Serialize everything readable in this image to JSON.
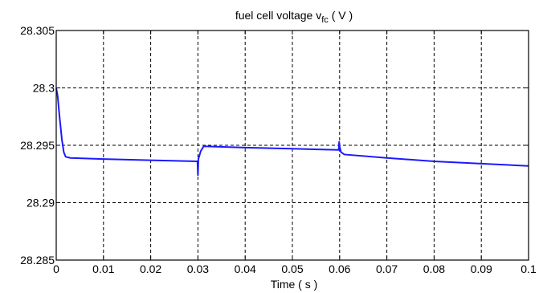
{
  "chart_data": {
    "type": "line",
    "title": {
      "prefix": "fuel cell voltage  v",
      "subscript": "fc",
      "suffix": " ( V )"
    },
    "xlabel": "Time ( s )",
    "ylabel": "",
    "xlim": [
      0,
      0.1
    ],
    "ylim": [
      28.285,
      28.305
    ],
    "grid": true,
    "x_ticks": [
      {
        "value": 0,
        "label": "0"
      },
      {
        "value": 0.01,
        "label": "0.01"
      },
      {
        "value": 0.02,
        "label": "0.02"
      },
      {
        "value": 0.03,
        "label": "0.03"
      },
      {
        "value": 0.04,
        "label": "0.04"
      },
      {
        "value": 0.05,
        "label": "0.05"
      },
      {
        "value": 0.06,
        "label": "0.06"
      },
      {
        "value": 0.07,
        "label": "0.07"
      },
      {
        "value": 0.08,
        "label": "0.08"
      },
      {
        "value": 0.09,
        "label": "0.09"
      },
      {
        "value": 0.1,
        "label": "0.1"
      }
    ],
    "y_ticks": [
      {
        "value": 28.285,
        "label": "28.285"
      },
      {
        "value": 28.29,
        "label": "28.29"
      },
      {
        "value": 28.295,
        "label": "28.295"
      },
      {
        "value": 28.3,
        "label": "28.3"
      },
      {
        "value": 28.305,
        "label": "28.305"
      }
    ],
    "series": [
      {
        "color": "#1a1aff",
        "points": [
          [
            0.0,
            28.3
          ],
          [
            0.0003,
            28.2993
          ],
          [
            0.0007,
            28.2975
          ],
          [
            0.0012,
            28.2955
          ],
          [
            0.0016,
            28.2944
          ],
          [
            0.002,
            28.294
          ],
          [
            0.003,
            28.2939
          ],
          [
            0.01,
            28.2938
          ],
          [
            0.02,
            28.2937
          ],
          [
            0.0299,
            28.2936
          ],
          [
            0.03,
            28.2924
          ],
          [
            0.0301,
            28.2938
          ],
          [
            0.0306,
            28.2945
          ],
          [
            0.0312,
            28.2949
          ],
          [
            0.032,
            28.2949
          ],
          [
            0.04,
            28.2948
          ],
          [
            0.05,
            28.2947
          ],
          [
            0.0598,
            28.2946
          ],
          [
            0.0599,
            28.2953
          ],
          [
            0.06,
            28.2949
          ],
          [
            0.0603,
            28.2944
          ],
          [
            0.061,
            28.2942
          ],
          [
            0.07,
            28.2939
          ],
          [
            0.08,
            28.2936
          ],
          [
            0.09,
            28.2934
          ],
          [
            0.1,
            28.2932
          ]
        ]
      }
    ]
  }
}
